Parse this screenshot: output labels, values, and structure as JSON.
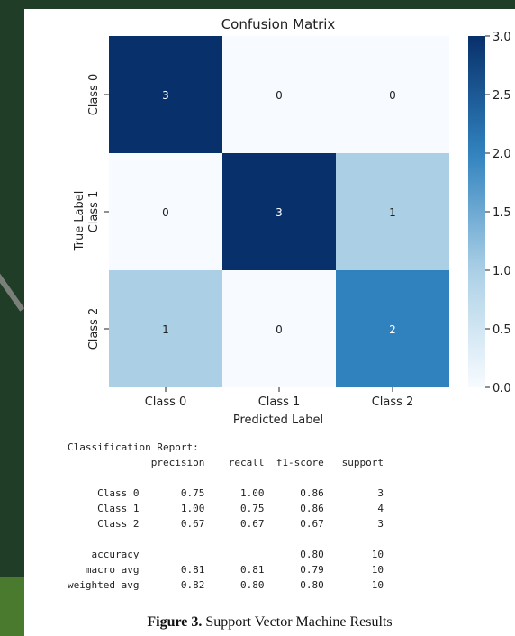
{
  "chart_data": {
    "type": "heatmap",
    "title": "Confusion Matrix",
    "xlabel": "Predicted Label",
    "ylabel": "True Label",
    "x_categories": [
      "Class 0",
      "Class 1",
      "Class 2"
    ],
    "y_categories": [
      "Class 0",
      "Class 1",
      "Class 2"
    ],
    "values": [
      [
        3,
        0,
        0
      ],
      [
        0,
        3,
        1
      ],
      [
        1,
        0,
        2
      ]
    ],
    "colorbar": {
      "min": 0.0,
      "max": 3.0,
      "ticks": [
        "0.0",
        "0.5",
        "1.0",
        "1.5",
        "2.0",
        "2.5",
        "3.0"
      ]
    },
    "colors": [
      "#f7fbff",
      "#abd0e6",
      "#3082be",
      "#08306b"
    ]
  },
  "report": {
    "lines": [
      "Classification Report:",
      "              precision    recall  f1-score   support",
      "",
      "     Class 0       0.75      1.00      0.86         3",
      "     Class 1       1.00      0.75      0.86         4",
      "     Class 2       0.67      0.67      0.67         3",
      "",
      "    accuracy                           0.80        10",
      "   macro avg       0.81      0.81      0.79        10",
      "weighted avg       0.82      0.80      0.80        10"
    ]
  },
  "caption": {
    "label": "Figure 3.",
    "text": " Support Vector Machine Results"
  }
}
